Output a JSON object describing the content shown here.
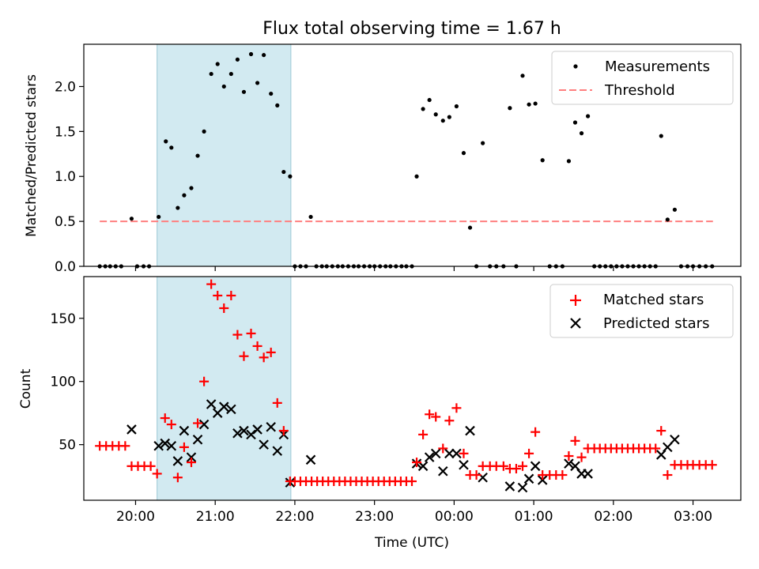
{
  "figure": {
    "title": "Flux total observing time = 1.67 h",
    "x_label": "Time (UTC)",
    "x_ticks": [
      {
        "t": 20,
        "label": "20:00"
      },
      {
        "t": 21,
        "label": "21:00"
      },
      {
        "t": 22,
        "label": "22:00"
      },
      {
        "t": 23,
        "label": "23:00"
      },
      {
        "t": 24,
        "label": "00:00"
      },
      {
        "t": 25,
        "label": "01:00"
      },
      {
        "t": 26,
        "label": "02:00"
      },
      {
        "t": 27,
        "label": "03:00"
      }
    ],
    "x_range_hours": [
      19.35,
      27.6
    ],
    "highlight_interval_hours": [
      20.27,
      21.95
    ],
    "highlight_color": "#add8e6",
    "colors": {
      "measurements": "#000000",
      "threshold": "#ff7f7f",
      "matched": "#ff0000",
      "predicted": "#000000"
    }
  },
  "chart_data": [
    {
      "type": "scatter",
      "ylabel": "Matched/Predicted stars",
      "ylim": [
        0,
        2.47
      ],
      "yticks": [
        "0.0",
        "0.5",
        "1.0",
        "1.5",
        "2.0"
      ],
      "grid": false,
      "legend_position": "top-right",
      "legend": [
        {
          "label": "Measurements",
          "marker": "dot"
        },
        {
          "label": "Threshold",
          "marker": "dashed-line"
        }
      ],
      "threshold": {
        "value": 0.5,
        "x_range_hours": [
          19.55,
          27.25
        ]
      },
      "measurements": [
        [
          19.55,
          0
        ],
        [
          19.62,
          0
        ],
        [
          19.68,
          0
        ],
        [
          19.75,
          0
        ],
        [
          19.82,
          0
        ],
        [
          19.95,
          0.53
        ],
        [
          20.02,
          0
        ],
        [
          20.1,
          0
        ],
        [
          20.17,
          0
        ],
        [
          20.29,
          0.55
        ],
        [
          20.38,
          1.39
        ],
        [
          20.45,
          1.32
        ],
        [
          20.53,
          0.65
        ],
        [
          20.61,
          0.79
        ],
        [
          20.7,
          0.87
        ],
        [
          20.78,
          1.23
        ],
        [
          20.86,
          1.5
        ],
        [
          20.95,
          2.14
        ],
        [
          21.03,
          2.25
        ],
        [
          21.11,
          2.0
        ],
        [
          21.2,
          2.14
        ],
        [
          21.28,
          2.3
        ],
        [
          21.36,
          1.94
        ],
        [
          21.45,
          2.36
        ],
        [
          21.53,
          2.04
        ],
        [
          21.61,
          2.35
        ],
        [
          21.7,
          1.92
        ],
        [
          21.78,
          1.79
        ],
        [
          21.86,
          1.05
        ],
        [
          21.94,
          1.0
        ],
        [
          22.0,
          0
        ],
        [
          22.07,
          0
        ],
        [
          22.14,
          0
        ],
        [
          22.2,
          0.55
        ],
        [
          22.27,
          0
        ],
        [
          22.34,
          0
        ],
        [
          22.4,
          0
        ],
        [
          22.47,
          0
        ],
        [
          22.54,
          0
        ],
        [
          22.6,
          0
        ],
        [
          22.67,
          0
        ],
        [
          22.74,
          0
        ],
        [
          22.8,
          0
        ],
        [
          22.87,
          0
        ],
        [
          22.94,
          0
        ],
        [
          23.0,
          0
        ],
        [
          23.07,
          0
        ],
        [
          23.14,
          0
        ],
        [
          23.2,
          0
        ],
        [
          23.27,
          0
        ],
        [
          23.34,
          0
        ],
        [
          23.4,
          0
        ],
        [
          23.47,
          0
        ],
        [
          23.53,
          1.0
        ],
        [
          23.61,
          1.75
        ],
        [
          23.69,
          1.85
        ],
        [
          23.77,
          1.69
        ],
        [
          23.86,
          1.62
        ],
        [
          23.94,
          1.66
        ],
        [
          24.03,
          1.78
        ],
        [
          24.12,
          1.26
        ],
        [
          24.2,
          0.43
        ],
        [
          24.28,
          0
        ],
        [
          24.36,
          1.37
        ],
        [
          24.45,
          0
        ],
        [
          24.53,
          0
        ],
        [
          24.62,
          0
        ],
        [
          24.7,
          1.76
        ],
        [
          24.78,
          0
        ],
        [
          24.86,
          2.12
        ],
        [
          24.94,
          1.8
        ],
        [
          25.02,
          1.81
        ],
        [
          25.11,
          1.18
        ],
        [
          25.2,
          0
        ],
        [
          25.28,
          0
        ],
        [
          25.36,
          0
        ],
        [
          25.44,
          1.17
        ],
        [
          25.52,
          1.6
        ],
        [
          25.6,
          1.48
        ],
        [
          25.68,
          1.67
        ],
        [
          25.76,
          0
        ],
        [
          25.83,
          0
        ],
        [
          25.9,
          0
        ],
        [
          25.97,
          0
        ],
        [
          26.04,
          0
        ],
        [
          26.11,
          0
        ],
        [
          26.18,
          0
        ],
        [
          26.25,
          0
        ],
        [
          26.32,
          0
        ],
        [
          26.39,
          0
        ],
        [
          26.46,
          0
        ],
        [
          26.53,
          0
        ],
        [
          26.6,
          1.45
        ],
        [
          26.68,
          0.52
        ],
        [
          26.77,
          0.63
        ],
        [
          26.85,
          0
        ],
        [
          26.93,
          0
        ],
        [
          27.0,
          0
        ],
        [
          27.08,
          0
        ],
        [
          27.16,
          0
        ],
        [
          27.24,
          0
        ]
      ]
    },
    {
      "type": "scatter",
      "ylabel": "Count",
      "ylim": [
        6,
        183
      ],
      "yticks": [
        "50",
        "100",
        "150"
      ],
      "grid": false,
      "legend_position": "top-right",
      "legend": [
        {
          "label": "Matched stars",
          "marker": "plus"
        },
        {
          "label": "Predicted stars",
          "marker": "cross"
        }
      ],
      "matched": [
        [
          19.55,
          49
        ],
        [
          19.63,
          49
        ],
        [
          19.71,
          49
        ],
        [
          19.79,
          49
        ],
        [
          19.87,
          49
        ],
        [
          19.95,
          33
        ],
        [
          20.03,
          33
        ],
        [
          20.11,
          33
        ],
        [
          20.19,
          33
        ],
        [
          20.27,
          27
        ],
        [
          20.37,
          71
        ],
        [
          20.45,
          66
        ],
        [
          20.53,
          24
        ],
        [
          20.61,
          48
        ],
        [
          20.7,
          36
        ],
        [
          20.78,
          67
        ],
        [
          20.86,
          100
        ],
        [
          20.95,
          177
        ],
        [
          21.03,
          168
        ],
        [
          21.11,
          158
        ],
        [
          21.2,
          168
        ],
        [
          21.28,
          137
        ],
        [
          21.36,
          120
        ],
        [
          21.45,
          138
        ],
        [
          21.53,
          128
        ],
        [
          21.61,
          119
        ],
        [
          21.7,
          123
        ],
        [
          21.78,
          83
        ],
        [
          21.86,
          61
        ],
        [
          21.94,
          21
        ],
        [
          22.0,
          21
        ],
        [
          22.07,
          21
        ],
        [
          22.14,
          21
        ],
        [
          22.21,
          21
        ],
        [
          22.28,
          21
        ],
        [
          22.35,
          21
        ],
        [
          22.42,
          21
        ],
        [
          22.49,
          21
        ],
        [
          22.56,
          21
        ],
        [
          22.63,
          21
        ],
        [
          22.7,
          21
        ],
        [
          22.77,
          21
        ],
        [
          22.84,
          21
        ],
        [
          22.91,
          21
        ],
        [
          22.98,
          21
        ],
        [
          23.05,
          21
        ],
        [
          23.12,
          21
        ],
        [
          23.19,
          21
        ],
        [
          23.26,
          21
        ],
        [
          23.33,
          21
        ],
        [
          23.4,
          21
        ],
        [
          23.47,
          21
        ],
        [
          23.53,
          36
        ],
        [
          23.61,
          58
        ],
        [
          23.69,
          74
        ],
        [
          23.77,
          72
        ],
        [
          23.86,
          47
        ],
        [
          23.94,
          69
        ],
        [
          24.03,
          79
        ],
        [
          24.12,
          43
        ],
        [
          24.2,
          26
        ],
        [
          24.28,
          26
        ],
        [
          24.36,
          33
        ],
        [
          24.45,
          33
        ],
        [
          24.53,
          33
        ],
        [
          24.62,
          33
        ],
        [
          24.7,
          31
        ],
        [
          24.78,
          31
        ],
        [
          24.86,
          33
        ],
        [
          24.94,
          43
        ],
        [
          25.02,
          60
        ],
        [
          25.11,
          26
        ],
        [
          25.2,
          26
        ],
        [
          25.28,
          26
        ],
        [
          25.36,
          26
        ],
        [
          25.44,
          41
        ],
        [
          25.52,
          53
        ],
        [
          25.6,
          40
        ],
        [
          25.68,
          47
        ],
        [
          25.76,
          47
        ],
        [
          25.83,
          47
        ],
        [
          25.9,
          47
        ],
        [
          25.97,
          47
        ],
        [
          26.04,
          47
        ],
        [
          26.11,
          47
        ],
        [
          26.18,
          47
        ],
        [
          26.25,
          47
        ],
        [
          26.32,
          47
        ],
        [
          26.39,
          47
        ],
        [
          26.46,
          47
        ],
        [
          26.53,
          47
        ],
        [
          26.6,
          61
        ],
        [
          26.68,
          26
        ],
        [
          26.77,
          34
        ],
        [
          26.85,
          34
        ],
        [
          26.93,
          34
        ],
        [
          27.0,
          34
        ],
        [
          27.08,
          34
        ],
        [
          27.16,
          34
        ],
        [
          27.24,
          34
        ]
      ],
      "predicted": [
        [
          19.95,
          62
        ],
        [
          20.29,
          49
        ],
        [
          20.37,
          51
        ],
        [
          20.45,
          49
        ],
        [
          20.53,
          37
        ],
        [
          20.61,
          61
        ],
        [
          20.7,
          40
        ],
        [
          20.78,
          54
        ],
        [
          20.86,
          66
        ],
        [
          20.95,
          82
        ],
        [
          21.03,
          75
        ],
        [
          21.11,
          80
        ],
        [
          21.2,
          78
        ],
        [
          21.28,
          59
        ],
        [
          21.36,
          61
        ],
        [
          21.45,
          58
        ],
        [
          21.53,
          62
        ],
        [
          21.61,
          50
        ],
        [
          21.7,
          64
        ],
        [
          21.78,
          45
        ],
        [
          21.86,
          58
        ],
        [
          21.94,
          20
        ],
        [
          22.2,
          38
        ],
        [
          23.53,
          35
        ],
        [
          23.61,
          33
        ],
        [
          23.69,
          40
        ],
        [
          23.77,
          43
        ],
        [
          23.86,
          29
        ],
        [
          23.94,
          43
        ],
        [
          24.03,
          43
        ],
        [
          24.12,
          34
        ],
        [
          24.2,
          61
        ],
        [
          24.36,
          24
        ],
        [
          24.7,
          17
        ],
        [
          24.86,
          16
        ],
        [
          24.94,
          23
        ],
        [
          25.02,
          33
        ],
        [
          25.11,
          22
        ],
        [
          25.44,
          35
        ],
        [
          25.52,
          33
        ],
        [
          25.6,
          27
        ],
        [
          25.68,
          27
        ],
        [
          26.6,
          42
        ],
        [
          26.68,
          48
        ],
        [
          26.77,
          54
        ]
      ]
    }
  ]
}
